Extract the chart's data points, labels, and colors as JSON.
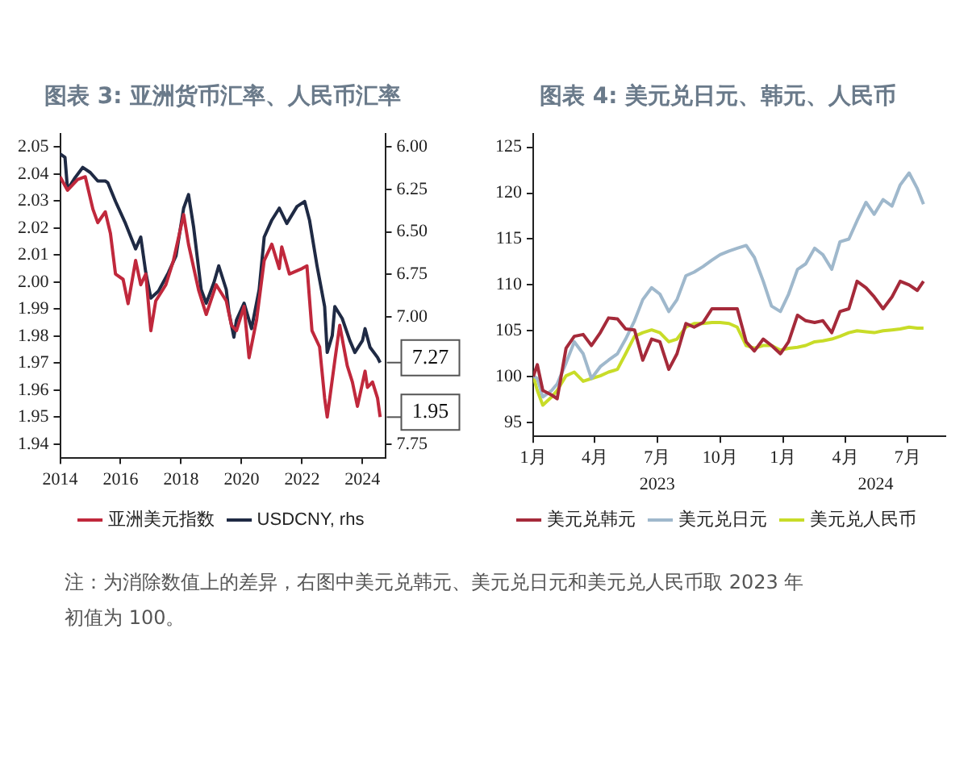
{
  "chart_data": [
    {
      "type": "line",
      "title": "图表 3: 亚洲货币汇率、人民币汇率",
      "xlim": [
        "2014-01",
        "2024-10"
      ],
      "xticks": [
        "2014",
        "2016",
        "2018",
        "2020",
        "2022",
        "2024"
      ],
      "ylim": [
        1.935,
        2.055
      ],
      "yticks": [
        1.94,
        1.95,
        1.96,
        1.97,
        1.98,
        1.99,
        {
          "value": 2,
          "label": "2.00"
        },
        2.01,
        2.02,
        2.03,
        2.04,
        2.05
      ],
      "y2lim": [
        7.83,
        5.92
      ],
      "y2ticks": [
        {
          "value": 6,
          "label": "6.00"
        },
        6.25,
        {
          "value": 6.5,
          "label": "6.50"
        },
        6.75,
        {
          "value": 7,
          "label": "7.00"
        },
        7.75
      ],
      "grid": false,
      "legend": "bottom",
      "marker": "none",
      "line_style": "solid",
      "series": [
        {
          "name": "亚洲美元指数",
          "color": "#c0283c",
          "x": [
            "2014-01",
            "2014-04",
            "2014-08",
            "2014-11",
            "2015-02",
            "2015-04",
            "2015-07",
            "2015-09",
            "2015-11",
            "2016-02",
            "2016-04",
            "2016-07",
            "2016-09",
            "2016-11",
            "2017-01",
            "2017-03",
            "2017-07",
            "2017-10",
            "2018-02",
            "2018-04",
            "2018-08",
            "2018-11",
            "2019-03",
            "2019-07",
            "2019-09",
            "2019-11",
            "2020-02",
            "2020-04",
            "2020-07",
            "2020-10",
            "2021-01",
            "2021-04",
            "2021-05",
            "2021-08",
            "2022-01",
            "2022-03",
            "2022-05",
            "2022-08",
            "2022-10",
            "2022-11",
            "2023-02",
            "2023-04",
            "2023-07",
            "2023-09",
            "2023-11",
            "2024-02",
            "2024-03",
            "2024-05",
            "2024-07",
            "2024-08"
          ],
          "values": [
            2.039,
            2.034,
            2.038,
            2.039,
            2.027,
            2.022,
            2.026,
            2.018,
            2.003,
            2.001,
            1.992,
            2.008,
            1.999,
            2.003,
            1.982,
            1.993,
            1.999,
            2.008,
            2.025,
            2.014,
            1.997,
            1.988,
            1.999,
            1.993,
            1.984,
            1.982,
            1.991,
            1.972,
            1.986,
            2.008,
            2.014,
            2.005,
            2.013,
            2.003,
            2.005,
            2.006,
            1.982,
            1.976,
            1.957,
            1.95,
            1.971,
            1.984,
            1.969,
            1.963,
            1.954,
            1.967,
            1.961,
            1.963,
            1.957,
            1.95
          ],
          "value_labels": [
            null,
            null,
            null,
            null,
            null,
            null,
            null,
            null,
            null,
            null,
            null,
            null,
            null,
            null,
            null,
            null,
            null,
            null,
            null,
            null,
            null,
            null,
            null,
            null,
            null,
            null,
            null,
            null,
            null,
            null,
            null,
            null,
            null,
            null,
            null,
            null,
            null,
            null,
            null,
            null,
            null,
            null,
            null,
            null,
            null,
            null,
            null,
            null,
            null,
            "1.95"
          ]
        },
        {
          "name": "USDCNY, rhs",
          "color": "#1f2a44",
          "axis": "y2",
          "x": [
            "2014-01",
            "2014-03",
            "2014-04",
            "2014-07",
            "2014-10",
            "2015-01",
            "2015-04",
            "2015-07",
            "2015-08",
            "2015-11",
            "2016-03",
            "2016-07",
            "2016-09",
            "2016-11",
            "2017-01",
            "2017-04",
            "2017-08",
            "2017-11",
            "2018-02",
            "2018-04",
            "2018-06",
            "2018-09",
            "2018-11",
            "2019-02",
            "2019-04",
            "2019-07",
            "2019-08",
            "2019-10",
            "2019-11",
            "2020-02",
            "2020-05",
            "2020-08",
            "2020-10",
            "2021-01",
            "2021-04",
            "2021-07",
            "2021-11",
            "2022-02",
            "2022-04",
            "2022-07",
            "2022-10",
            "2022-11",
            "2023-01",
            "2023-02",
            "2023-05",
            "2023-08",
            "2023-10",
            "2024-01",
            "2024-02",
            "2024-04",
            "2024-07",
            "2024-08"
          ],
          "values": [
            6.04,
            6.06,
            6.25,
            6.18,
            6.12,
            6.15,
            6.2,
            6.2,
            6.21,
            6.32,
            6.45,
            6.6,
            6.53,
            6.74,
            6.89,
            6.85,
            6.74,
            6.64,
            6.36,
            6.28,
            6.47,
            6.84,
            6.92,
            6.8,
            6.7,
            6.84,
            6.97,
            7.12,
            7.02,
            6.92,
            7.07,
            6.84,
            6.53,
            6.43,
            6.36,
            6.45,
            6.35,
            6.32,
            6.43,
            6.7,
            6.94,
            7.21,
            7.11,
            6.94,
            7.01,
            7.14,
            7.21,
            7.14,
            7.07,
            7.18,
            7.24,
            7.27
          ],
          "value_labels": [
            null,
            null,
            null,
            null,
            null,
            null,
            null,
            null,
            null,
            null,
            null,
            null,
            null,
            null,
            null,
            null,
            null,
            null,
            null,
            null,
            null,
            null,
            null,
            null,
            null,
            null,
            null,
            null,
            null,
            null,
            null,
            null,
            null,
            null,
            null,
            null,
            null,
            null,
            null,
            null,
            null,
            null,
            null,
            null,
            null,
            null,
            null,
            null,
            null,
            null,
            null,
            "7.27"
          ]
        }
      ]
    },
    {
      "type": "line",
      "title": "图表 4: 美元兑日元、韩元、人民币",
      "xlim": [
        "2023-01-01",
        "2024-08-25"
      ],
      "xticks": [
        {
          "value": "2023-01-01",
          "label": "1月"
        },
        {
          "value": "2023-04-01",
          "label": "4月"
        },
        {
          "value": "2023-07-01",
          "label": "7月"
        },
        {
          "value": "2023-10-01",
          "label": "10月"
        },
        {
          "value": "2024-01-01",
          "label": "1月"
        },
        {
          "value": "2024-04-01",
          "label": "4月"
        },
        {
          "value": "2024-07-01",
          "label": "7月"
        }
      ],
      "ylim": [
        93.5,
        126.5
      ],
      "yticks": [
        95,
        100,
        105,
        110,
        115,
        120,
        125
      ],
      "grid": false,
      "legend": "bottom",
      "marker": "none",
      "line_style": "solid",
      "x2lim": [
        "2023-01-01",
        "2024-08-25"
      ],
      "x2ticks": [
        {
          "value": "2023-07-01",
          "label": "2023"
        },
        {
          "value": "2024-05-15",
          "label": "2024"
        }
      ],
      "annotations": [
        "注：为消除数值上的差异，右图中美元兑韩元、美元兑日元和美元兑人民币取 2023 年初值为 100。"
      ],
      "x": [
        "2023-01-01",
        "2023-01-07",
        "2023-01-15",
        "2023-01-28",
        "2023-02-05",
        "2023-02-18",
        "2023-03-02",
        "2023-03-15",
        "2023-03-27",
        "2023-04-09",
        "2023-04-21",
        "2023-05-04",
        "2023-05-16",
        "2023-05-29",
        "2023-06-10",
        "2023-06-23",
        "2023-07-05",
        "2023-07-18",
        "2023-07-30",
        "2023-08-12",
        "2023-08-24",
        "2023-09-06",
        "2023-09-19",
        "2023-10-01",
        "2023-10-14",
        "2023-10-26",
        "2023-11-08",
        "2023-11-20",
        "2023-12-03",
        "2023-12-15",
        "2023-12-28",
        "2024-01-09",
        "2024-01-22",
        "2024-02-03",
        "2024-02-16",
        "2024-02-28",
        "2024-03-12",
        "2024-03-24",
        "2024-04-06",
        "2024-04-18",
        "2024-05-01",
        "2024-05-13",
        "2024-05-26",
        "2024-06-08",
        "2024-06-20",
        "2024-07-03",
        "2024-07-15",
        "2024-07-24"
      ],
      "series": [
        {
          "name": "美元兑韩元",
          "color": "#a52a3a",
          "values": [
            100,
            101.3,
            98.5,
            98,
            97.6,
            103.1,
            104.4,
            104.6,
            103.4,
            104.8,
            106.4,
            106.3,
            105.2,
            105.1,
            101.8,
            104.1,
            103.8,
            100.8,
            102.5,
            105.8,
            105.4,
            105.9,
            107.4,
            107.4,
            107.4,
            107.4,
            103.8,
            102.8,
            104.1,
            103.4,
            102.5,
            103.8,
            106.7,
            106.1,
            105.9,
            106.1,
            104.8,
            107.1,
            107.4,
            110.4,
            109.7,
            108.7,
            107.4,
            108.7,
            110.4,
            110,
            109.4,
            110.4
          ]
        },
        {
          "name": "美元兑日元",
          "color": "#9fb8cc",
          "values": [
            100.1,
            99.8,
            97.8,
            98.5,
            99.2,
            101.5,
            103.8,
            102.5,
            99.8,
            101.1,
            101.8,
            102.5,
            104.1,
            106.1,
            108.4,
            109.7,
            109,
            107.1,
            108.4,
            111,
            111.4,
            112,
            112.7,
            113.3,
            113.7,
            114,
            114.3,
            113,
            110.4,
            107.7,
            107.1,
            109,
            111.7,
            112.3,
            114,
            113.3,
            111.7,
            114.7,
            115,
            117,
            119,
            117.7,
            119.3,
            118.6,
            120.9,
            122.2,
            120.5,
            118.8
          ]
        },
        {
          "name": "美元兑人民币",
          "color": "#c8dc28",
          "values": [
            100.1,
            98.5,
            96.9,
            97.8,
            98.5,
            100.1,
            100.5,
            99.5,
            99.8,
            100.1,
            100.5,
            100.8,
            102.5,
            104.4,
            104.8,
            105.1,
            104.8,
            103.8,
            104.1,
            105.4,
            105.8,
            105.8,
            105.9,
            105.9,
            105.8,
            105.4,
            103.4,
            103.1,
            103.4,
            103.4,
            102.9,
            103.1,
            103.2,
            103.4,
            103.8,
            103.9,
            104.1,
            104.4,
            104.8,
            105,
            104.9,
            104.8,
            105,
            105.1,
            105.2,
            105.4,
            105.3,
            105.3
          ]
        }
      ]
    }
  ]
}
